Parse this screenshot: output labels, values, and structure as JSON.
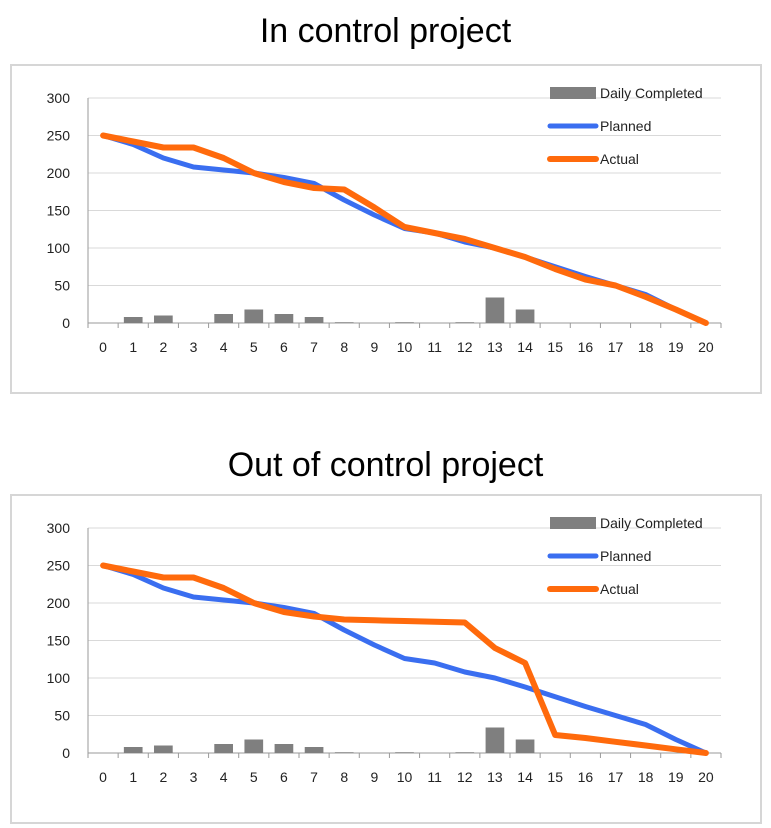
{
  "colors": {
    "daily_completed": "#7f7f7f",
    "planned": "#3a6ef0",
    "actual": "#ff6a0c",
    "grid": "#d9d9d9",
    "axis": "#9a9a9a"
  },
  "chart_data": [
    {
      "type": "bar+line",
      "title": "In control project",
      "xlabel": "",
      "ylabel": "",
      "categories": [
        "0",
        "1",
        "2",
        "3",
        "4",
        "5",
        "6",
        "7",
        "8",
        "9",
        "10",
        "11",
        "12",
        "13",
        "14",
        "15",
        "16",
        "17",
        "18",
        "19",
        "20"
      ],
      "ylim": [
        0,
        300
      ],
      "yticks": [
        "0",
        "50",
        "100",
        "150",
        "200",
        "250",
        "300"
      ],
      "grid": true,
      "legend_position": "top-right",
      "series": [
        {
          "name": "Daily Completed",
          "type": "bar",
          "values": [
            0,
            8,
            10,
            0,
            12,
            18,
            12,
            8,
            1,
            0,
            1,
            0,
            1,
            34,
            18,
            0,
            0,
            0,
            0,
            0,
            0
          ]
        },
        {
          "name": "Planned",
          "type": "line",
          "values": [
            250,
            238,
            220,
            208,
            204,
            200,
            194,
            186,
            164,
            144,
            126,
            120,
            108,
            100,
            88,
            75,
            62,
            50,
            38,
            18,
            0
          ]
        },
        {
          "name": "Actual",
          "type": "line",
          "values": [
            250,
            242,
            234,
            234,
            220,
            200,
            188,
            180,
            178,
            154,
            128,
            120,
            112,
            100,
            88,
            72,
            58,
            50,
            35,
            18,
            0
          ]
        }
      ]
    },
    {
      "type": "bar+line",
      "title": "Out of control project",
      "xlabel": "",
      "ylabel": "",
      "categories": [
        "0",
        "1",
        "2",
        "3",
        "4",
        "5",
        "6",
        "7",
        "8",
        "9",
        "10",
        "11",
        "12",
        "13",
        "14",
        "15",
        "16",
        "17",
        "18",
        "19",
        "20"
      ],
      "ylim": [
        0,
        300
      ],
      "yticks": [
        "0",
        "50",
        "100",
        "150",
        "200",
        "250",
        "300"
      ],
      "grid": true,
      "legend_position": "top-right",
      "series": [
        {
          "name": "Daily Completed",
          "type": "bar",
          "values": [
            0,
            8,
            10,
            0,
            12,
            18,
            12,
            8,
            1,
            0,
            1,
            0,
            1,
            34,
            18,
            0,
            0,
            0,
            0,
            0,
            0
          ]
        },
        {
          "name": "Planned",
          "type": "line",
          "values": [
            250,
            238,
            220,
            208,
            204,
            200,
            194,
            186,
            164,
            144,
            126,
            120,
            108,
            100,
            88,
            75,
            62,
            50,
            38,
            18,
            0
          ]
        },
        {
          "name": "Actual",
          "type": "line",
          "values": [
            250,
            242,
            234,
            234,
            220,
            200,
            188,
            182,
            178,
            177,
            176,
            175,
            174,
            140,
            120,
            24,
            20,
            15,
            10,
            5,
            0
          ]
        }
      ]
    }
  ]
}
